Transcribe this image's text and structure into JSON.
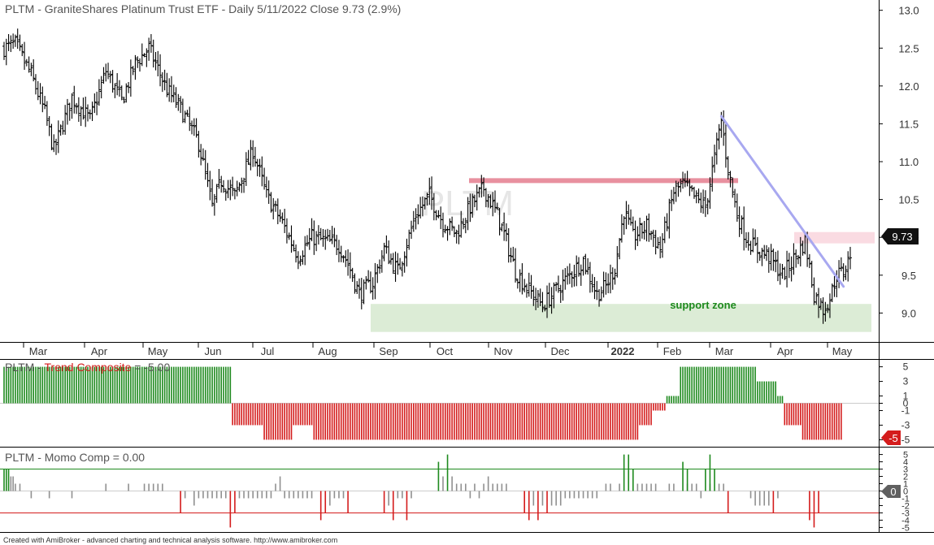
{
  "chart_data": [
    {
      "type": "ohlc",
      "title": "PLTM - GraniteShares Platinum Trust ETF - Daily 5/11/2022 Close 9.73 (2.9%)",
      "watermark": "PLTM",
      "ylim": [
        8.65,
        13.05
      ],
      "yticks": [
        "13.0",
        "12.5",
        "12.0",
        "11.5",
        "11.0",
        "10.5",
        "10.0",
        "9.5",
        "9.0"
      ],
      "y_tick_values": [
        13.0,
        12.5,
        12.0,
        11.5,
        11.0,
        10.5,
        10.0,
        9.5,
        9.0
      ],
      "x_labels": [
        "Mar",
        "Apr",
        "May",
        "Jun",
        "Jul",
        "Aug",
        "Sep",
        "Oct",
        "Nov",
        "Dec",
        "2022",
        "Feb",
        "Mar",
        "Apr",
        "May"
      ],
      "last_price_label": "9.73",
      "last_price": 9.73,
      "bar_color": "#000000",
      "price_path": [
        [
          0,
          12.5
        ],
        [
          5,
          12.55
        ],
        [
          12,
          12.15
        ],
        [
          18,
          11.65
        ],
        [
          22,
          11.15
        ],
        [
          30,
          11.85
        ],
        [
          38,
          11.55
        ],
        [
          45,
          12.2
        ],
        [
          52,
          11.8
        ],
        [
          58,
          12.3
        ],
        [
          64,
          12.5
        ],
        [
          72,
          11.95
        ],
        [
          78,
          11.7
        ],
        [
          86,
          11.25
        ],
        [
          92,
          10.4
        ],
        [
          96,
          10.75
        ],
        [
          102,
          10.55
        ],
        [
          110,
          11.15
        ],
        [
          116,
          10.55
        ],
        [
          122,
          10.25
        ],
        [
          130,
          9.75
        ],
        [
          136,
          10.0
        ],
        [
          142,
          9.95
        ],
        [
          148,
          9.9
        ],
        [
          152,
          9.65
        ],
        [
          157,
          9.25
        ],
        [
          163,
          9.4
        ],
        [
          168,
          9.85
        ],
        [
          174,
          9.55
        ],
        [
          182,
          10.3
        ],
        [
          188,
          10.55
        ],
        [
          194,
          10.2
        ],
        [
          200,
          10.05
        ],
        [
          206,
          10.4
        ],
        [
          212,
          10.65
        ],
        [
          218,
          10.3
        ],
        [
          222,
          9.95
        ],
        [
          226,
          9.55
        ],
        [
          232,
          9.3
        ],
        [
          238,
          9.1
        ],
        [
          244,
          9.3
        ],
        [
          250,
          9.5
        ],
        [
          256,
          9.7
        ],
        [
          262,
          9.25
        ],
        [
          266,
          9.35
        ],
        [
          270,
          9.6
        ],
        [
          274,
          10.35
        ],
        [
          278,
          10.0
        ],
        [
          284,
          10.15
        ],
        [
          290,
          9.85
        ],
        [
          296,
          10.6
        ],
        [
          300,
          10.7
        ],
        [
          306,
          10.5
        ],
        [
          310,
          10.4
        ],
        [
          314,
          11.05
        ],
        [
          317,
          11.55
        ],
        [
          320,
          10.9
        ],
        [
          324,
          10.3
        ],
        [
          328,
          10.0
        ],
        [
          332,
          9.85
        ],
        [
          338,
          9.75
        ],
        [
          344,
          9.5
        ],
        [
          350,
          9.75
        ],
        [
          354,
          9.95
        ],
        [
          358,
          9.25
        ],
        [
          362,
          9.05
        ],
        [
          365,
          9.2
        ],
        [
          368,
          9.5
        ],
        [
          371,
          9.55
        ],
        [
          374,
          9.75
        ]
      ],
      "resistance_level": 10.75,
      "support_zone": [
        8.75,
        9.12
      ],
      "support_label": "support zone",
      "resistance_zone": [
        9.92,
        10.07
      ],
      "trendline": [
        [
          317,
          11.6
        ],
        [
          371,
          9.35
        ]
      ],
      "resistance_color": "#e8909f",
      "support_color": "#dcecd6",
      "trendline_color": "#a8a8f0",
      "zone_color": "#fadbe2"
    },
    {
      "type": "bar",
      "title_prefix": "PLTM - ",
      "title_name": "Trend Composite",
      "title_suffix": " = -5.00",
      "ylim": [
        -5.4,
        5.4
      ],
      "yticks": [
        "5",
        "3",
        "1",
        "0",
        "-1",
        "-3",
        "-5"
      ],
      "y_tick_values": [
        5,
        3,
        1,
        0,
        -1,
        -3,
        -5
      ],
      "last_value_label": "-5",
      "last_value": -5,
      "positive_color": "#1e8a1e",
      "negative_color": "#d41c1c",
      "segments": [
        [
          0,
          100,
          5
        ],
        [
          101,
          114,
          -3
        ],
        [
          115,
          127,
          -5
        ],
        [
          128,
          136,
          -3
        ],
        [
          137,
          280,
          -5
        ],
        [
          281,
          286,
          -3
        ],
        [
          287,
          292,
          -1
        ],
        [
          293,
          298,
          1
        ],
        [
          299,
          332,
          5
        ],
        [
          333,
          341,
          3
        ],
        [
          342,
          344,
          1
        ],
        [
          345,
          352,
          -3
        ],
        [
          353,
          370,
          -5
        ]
      ]
    },
    {
      "type": "bar",
      "title_prefix": "PLTM - ",
      "title_name": "Momo Comp",
      "title_suffix": " = 0.00",
      "ylim": [
        -5.4,
        5.4
      ],
      "yticks": [
        "5",
        "4",
        "3",
        "2",
        "1",
        "0",
        "-1",
        "-2",
        "-3",
        "-4",
        "-5"
      ],
      "y_tick_values": [
        5,
        4,
        3,
        2,
        1,
        0,
        -1,
        -2,
        -3,
        -4,
        -5
      ],
      "upper_line": 3,
      "lower_line": -3,
      "last_value_label": "0",
      "last_value": 0,
      "positive_color": "#1e8a1e",
      "negative_color": "#d41c1c",
      "neutral_color": "#909090",
      "bars": [
        [
          0,
          3
        ],
        [
          1,
          3
        ],
        [
          2,
          3
        ],
        [
          3,
          2
        ],
        [
          4,
          2
        ],
        [
          5,
          1
        ],
        [
          7,
          1
        ],
        [
          12,
          -1
        ],
        [
          20,
          -1
        ],
        [
          30,
          -1
        ],
        [
          45,
          1
        ],
        [
          55,
          1
        ],
        [
          62,
          1
        ],
        [
          64,
          1
        ],
        [
          66,
          1
        ],
        [
          68,
          1
        ],
        [
          70,
          1
        ],
        [
          78,
          -3
        ],
        [
          80,
          -1
        ],
        [
          84,
          -2
        ],
        [
          86,
          -1
        ],
        [
          88,
          -1
        ],
        [
          90,
          -1
        ],
        [
          92,
          -1
        ],
        [
          94,
          -1
        ],
        [
          96,
          -1
        ],
        [
          98,
          -1
        ],
        [
          100,
          -5
        ],
        [
          102,
          -3
        ],
        [
          104,
          -1
        ],
        [
          106,
          -1
        ],
        [
          108,
          -1
        ],
        [
          110,
          -1
        ],
        [
          112,
          -1
        ],
        [
          114,
          -1
        ],
        [
          116,
          -1
        ],
        [
          118,
          -1
        ],
        [
          120,
          1
        ],
        [
          122,
          2
        ],
        [
          124,
          -1
        ],
        [
          126,
          -1
        ],
        [
          128,
          -1
        ],
        [
          130,
          -1
        ],
        [
          132,
          -1
        ],
        [
          134,
          -1
        ],
        [
          136,
          -1
        ],
        [
          140,
          -4
        ],
        [
          142,
          -3
        ],
        [
          144,
          -2
        ],
        [
          146,
          -1
        ],
        [
          148,
          -1
        ],
        [
          150,
          -1
        ],
        [
          152,
          -3
        ],
        [
          168,
          -3
        ],
        [
          170,
          -2
        ],
        [
          172,
          -4
        ],
        [
          174,
          -1
        ],
        [
          176,
          -1
        ],
        [
          178,
          -4
        ],
        [
          180,
          -1
        ],
        [
          192,
          4
        ],
        [
          194,
          2
        ],
        [
          196,
          5
        ],
        [
          198,
          2
        ],
        [
          200,
          1
        ],
        [
          202,
          1
        ],
        [
          204,
          1
        ],
        [
          206,
          -1
        ],
        [
          208,
          1
        ],
        [
          210,
          -1
        ],
        [
          212,
          1
        ],
        [
          214,
          2
        ],
        [
          216,
          1
        ],
        [
          218,
          1
        ],
        [
          220,
          1
        ],
        [
          222,
          1
        ],
        [
          230,
          -3
        ],
        [
          232,
          -4
        ],
        [
          234,
          -2
        ],
        [
          236,
          -4
        ],
        [
          238,
          -2
        ],
        [
          240,
          -3
        ],
        [
          242,
          -2
        ],
        [
          244,
          -2
        ],
        [
          246,
          -2
        ],
        [
          248,
          -1
        ],
        [
          250,
          -1
        ],
        [
          252,
          -1
        ],
        [
          254,
          -1
        ],
        [
          256,
          -1
        ],
        [
          258,
          -1
        ],
        [
          260,
          -1
        ],
        [
          262,
          -1
        ],
        [
          266,
          1
        ],
        [
          268,
          1
        ],
        [
          272,
          1
        ],
        [
          280,
          1
        ],
        [
          282,
          1
        ],
        [
          284,
          1
        ],
        [
          286,
          1
        ],
        [
          288,
          1
        ],
        [
          294,
          1
        ],
        [
          296,
          1
        ],
        [
          302,
          1
        ],
        [
          304,
          1
        ],
        [
          306,
          1
        ],
        [
          308,
          -1
        ],
        [
          312,
          1
        ],
        [
          316,
          1
        ],
        [
          318,
          1
        ],
        [
          274,
          5
        ],
        [
          276,
          5
        ],
        [
          278,
          3
        ],
        [
          300,
          4
        ],
        [
          302,
          3
        ],
        [
          310,
          3
        ],
        [
          312,
          5
        ],
        [
          314,
          3
        ],
        [
          320,
          -3
        ],
        [
          330,
          -1
        ],
        [
          332,
          -2
        ],
        [
          334,
          -2
        ],
        [
          336,
          -2
        ],
        [
          338,
          -2
        ],
        [
          340,
          -3
        ],
        [
          342,
          -1
        ],
        [
          356,
          -4
        ],
        [
          358,
          -5
        ],
        [
          360,
          -3
        ]
      ]
    }
  ],
  "footer": "Created with AmiBroker - advanced charting and technical analysis software. http://www.amibroker.com"
}
